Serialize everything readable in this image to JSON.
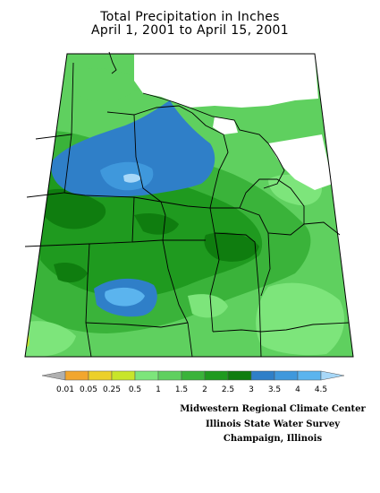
{
  "title": {
    "line1": "Total Precipitation in Inches",
    "line2": "April 1, 2001 to April 15, 2001"
  },
  "legend": {
    "unit": "inches",
    "tick_labels": [
      "0.01",
      "0.05",
      "0.25",
      "0.5",
      "1",
      "1.5",
      "2",
      "2.5",
      "3",
      "3.5",
      "4",
      "4.5"
    ],
    "colors": [
      "#b0b0b0",
      "#f2a62e",
      "#ecd02a",
      "#c8e52a",
      "#7de57b",
      "#5fd05f",
      "#3ab33a",
      "#1f9a1f",
      "#0f7d0f",
      "#2f7fc8",
      "#3f98dc",
      "#5bb4ee",
      "#a8d8f8"
    ]
  },
  "map": {
    "region": "Midwest United States",
    "background": "#ffffff",
    "state_border_color": "#000000",
    "graticule_color": "#707070"
  },
  "credit": {
    "line1": "Midwestern Regional Climate Center",
    "line2": "Illinois State Water Survey",
    "line3": "Champaign, Illinois"
  }
}
